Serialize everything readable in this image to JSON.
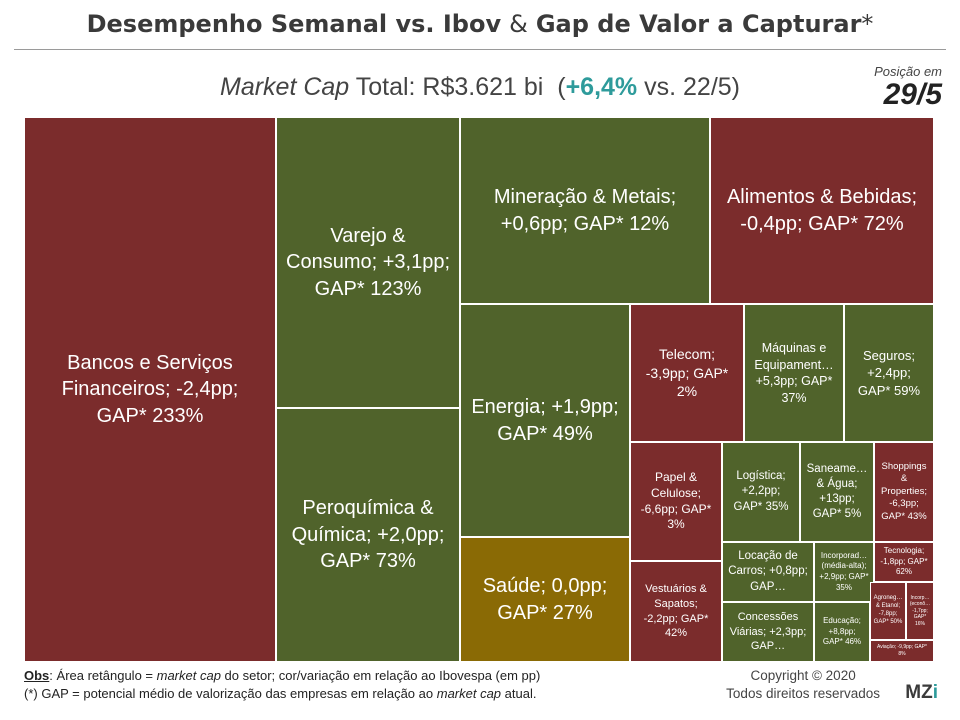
{
  "header": {
    "title_left": "Desempenho Semanal vs. Ibov",
    "amp": "&",
    "title_right": "Gap de Valor a Capturar",
    "title_star": "*",
    "subtitle_italic": "Market Cap",
    "subtitle_mid": "Total: R$3.621 bi",
    "subtitle_pct": "+6,4%",
    "subtitle_end": "vs. 22/5)",
    "subtitle_open": "(",
    "position_label": "Posição em",
    "position_date": "29/5"
  },
  "colors": {
    "negative": "#7b2c2c",
    "positive": "#50632b",
    "neutral": "#8a6a05",
    "accent": "#2e9b9b"
  },
  "chart_data": {
    "type": "treemap",
    "size_measure": "market cap do setor",
    "color_measure": "variação em relação ao Ibovespa (pp)",
    "sectors": [
      {
        "label": "Bancos e Serviços Financeiros; -2,4pp; GAP* 233%",
        "change_pp": -2.4,
        "gap_pct": 233
      },
      {
        "label": "Varejo & Consumo; +3,1pp; GAP* 123%",
        "change_pp": 3.1,
        "gap_pct": 123
      },
      {
        "label": "Peroquímica & Química; +2,0pp; GAP* 73%",
        "change_pp": 2.0,
        "gap_pct": 73
      },
      {
        "label": "Mineração & Metais; +0,6pp; GAP* 12%",
        "change_pp": 0.6,
        "gap_pct": 12
      },
      {
        "label": "Alimentos & Bebidas; -0,4pp; GAP* 72%",
        "change_pp": -0.4,
        "gap_pct": 72
      },
      {
        "label": "Energia; +1,9pp; GAP* 49%",
        "change_pp": 1.9,
        "gap_pct": 49
      },
      {
        "label": "Saúde; 0,0pp; GAP* 27%",
        "change_pp": 0.0,
        "gap_pct": 27
      },
      {
        "label": "Telecom; -3,9pp; GAP* 2%",
        "change_pp": -3.9,
        "gap_pct": 2
      },
      {
        "label": "Máquinas e Equipament… +5,3pp; GAP* 37%",
        "change_pp": 5.3,
        "gap_pct": 37
      },
      {
        "label": "Seguros; +2,4pp; GAP* 59%",
        "change_pp": 2.4,
        "gap_pct": 59
      },
      {
        "label": "Papel & Celulose; -6,6pp; GAP* 3%",
        "change_pp": -6.6,
        "gap_pct": 3
      },
      {
        "label": "Logística; +2,2pp; GAP* 35%",
        "change_pp": 2.2,
        "gap_pct": 35
      },
      {
        "label": "Saneame… & Água; +13pp; GAP* 5%",
        "change_pp": 13,
        "gap_pct": 5
      },
      {
        "label": "Shoppings & Properties; -6,3pp; GAP* 43%",
        "change_pp": -6.3,
        "gap_pct": 43
      },
      {
        "label": "Locação de Carros; +0,8pp; GAP…",
        "change_pp": 0.8
      },
      {
        "label": "Incorporad… (média-alta); +2,9pp; GAP* 35%",
        "change_pp": 2.9,
        "gap_pct": 35
      },
      {
        "label": "Tecnologia; -1,8pp; GAP* 62%",
        "change_pp": -1.8,
        "gap_pct": 62
      },
      {
        "label": "Vestuários & Sapatos; -2,2pp; GAP* 42%",
        "change_pp": -2.2,
        "gap_pct": 42
      },
      {
        "label": "Concessões Viárias; +2,3pp; GAP…",
        "change_pp": 2.3
      },
      {
        "label": "Educação; +8,8pp; GAP* 46%",
        "change_pp": 8.8,
        "gap_pct": 46
      },
      {
        "label": "Agroneg… & Etanol; -7,8pp; GAP* 50%",
        "change_pp": -7.8,
        "gap_pct": 50
      },
      {
        "label": "Incorp… (econô… -1,7pp; GAP* 16%",
        "change_pp": -1.7,
        "gap_pct": 16
      },
      {
        "label": "Aviação; -9,9pp; GAP* 8%",
        "change_pp": -9.9,
        "gap_pct": 8
      }
    ]
  },
  "footer": {
    "obs_label": "Obs",
    "obs_text_1": ": Área retângulo = ",
    "obs_mc": "market cap",
    "obs_text_2": " do setor; cor/variação em relação ao Ibovespa (em pp)",
    "gap_text_1": "(*) GAP = potencial médio de valorização das empresas em relação ao ",
    "gap_mc": "market cap",
    "gap_text_2": " atual.",
    "copyright_1": "Copyright © 2020",
    "copyright_2": "Todos direitos reservados",
    "logo_main": "MZ",
    "logo_i": "i"
  }
}
